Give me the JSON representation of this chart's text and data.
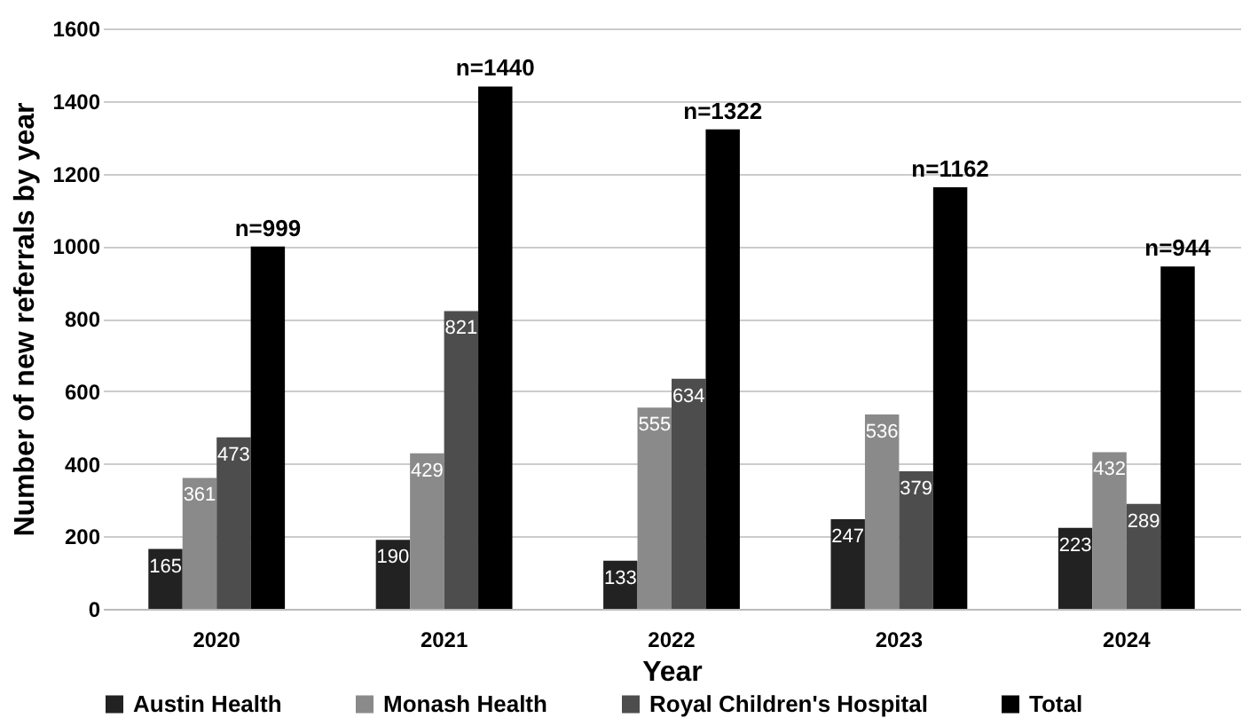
{
  "chart_data": {
    "type": "bar",
    "xlabel": "Year",
    "ylabel": "Number of new referrals by year",
    "categories": [
      "2020",
      "2021",
      "2022",
      "2023",
      "2024"
    ],
    "series": [
      {
        "name": "Austin Health",
        "color": "#222222",
        "values": [
          165,
          190,
          133,
          247,
          223
        ],
        "value_labels": [
          "165",
          "190",
          "133",
          "247",
          "223"
        ]
      },
      {
        "name": "Monash Health",
        "color": "#8a8a8a",
        "values": [
          361,
          429,
          555,
          536,
          432
        ],
        "value_labels": [
          "361",
          "429",
          "555",
          "536",
          "432"
        ]
      },
      {
        "name": "Royal Children's Hospital",
        "color": "#4d4d4d",
        "values": [
          473,
          821,
          634,
          379,
          289
        ],
        "value_labels": [
          "473",
          "821",
          "634",
          "379",
          "289"
        ]
      },
      {
        "name": "Total",
        "color": "#000000",
        "values": [
          999,
          1440,
          1322,
          1162,
          944
        ],
        "value_labels": [
          "n=999",
          "n=1440",
          "n=1322",
          "n=1162",
          "n=944"
        ]
      }
    ],
    "ylim": [
      0,
      1600
    ],
    "yticks": [
      0,
      200,
      400,
      600,
      800,
      1000,
      1200,
      1400,
      1600
    ],
    "grid": "y",
    "legend": "bottom"
  }
}
